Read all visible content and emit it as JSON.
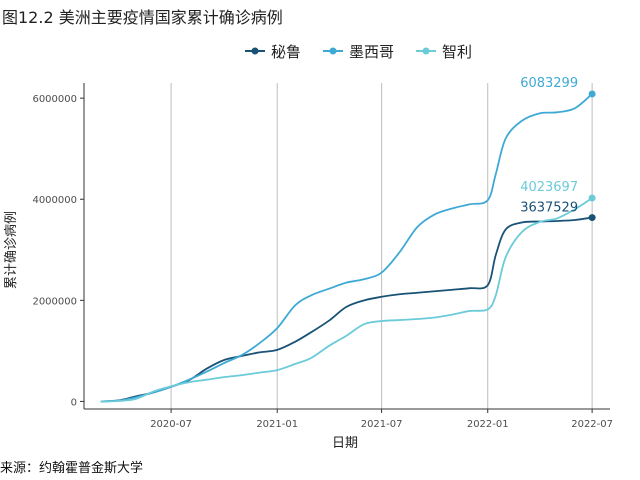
{
  "figure_title": "图12.2 美洲主要疫情国家累计确诊病例",
  "source_note": "来源：约翰霍普金斯大学",
  "chart_data": {
    "type": "line",
    "title": "",
    "xlabel": "日期",
    "ylabel": "累计确诊病例",
    "x_ticks": [
      "2020-07",
      "2021-01",
      "2021-07",
      "2022-01",
      "2022-07"
    ],
    "x_range": [
      "2020-02",
      "2022-08"
    ],
    "y_ticks": [
      0,
      2000000,
      4000000,
      6000000
    ],
    "ylim": [
      -150000,
      6300000
    ],
    "grid": "vertical major",
    "legend_position": "top",
    "series": [
      {
        "name": "秘鲁",
        "color": "#1a5276",
        "end_label": "3637529",
        "points": [
          [
            "2020-03-01",
            0
          ],
          [
            "2020-04-01",
            20000
          ],
          [
            "2020-05-01",
            100000
          ],
          [
            "2020-06-01",
            180000
          ],
          [
            "2020-07-01",
            290000
          ],
          [
            "2020-08-01",
            420000
          ],
          [
            "2020-09-01",
            650000
          ],
          [
            "2020-10-01",
            820000
          ],
          [
            "2020-11-01",
            900000
          ],
          [
            "2020-12-01",
            970000
          ],
          [
            "2021-01-01",
            1020000
          ],
          [
            "2021-02-01",
            1180000
          ],
          [
            "2021-03-01",
            1370000
          ],
          [
            "2021-04-01",
            1600000
          ],
          [
            "2021-05-01",
            1870000
          ],
          [
            "2021-06-01",
            2000000
          ],
          [
            "2021-07-01",
            2070000
          ],
          [
            "2021-08-01",
            2120000
          ],
          [
            "2021-09-01",
            2150000
          ],
          [
            "2021-10-01",
            2180000
          ],
          [
            "2021-11-01",
            2210000
          ],
          [
            "2021-12-01",
            2240000
          ],
          [
            "2022-01-01",
            2300000
          ],
          [
            "2022-01-15",
            2900000
          ],
          [
            "2022-02-01",
            3400000
          ],
          [
            "2022-03-01",
            3540000
          ],
          [
            "2022-04-01",
            3560000
          ],
          [
            "2022-05-01",
            3570000
          ],
          [
            "2022-06-01",
            3590000
          ],
          [
            "2022-07-01",
            3637529
          ]
        ]
      },
      {
        "name": "墨西哥",
        "color": "#3fa9d5",
        "end_label": "6083299",
        "points": [
          [
            "2020-03-01",
            0
          ],
          [
            "2020-04-01",
            15000
          ],
          [
            "2020-05-01",
            80000
          ],
          [
            "2020-06-01",
            180000
          ],
          [
            "2020-07-01",
            290000
          ],
          [
            "2020-08-01",
            430000
          ],
          [
            "2020-09-01",
            590000
          ],
          [
            "2020-10-01",
            760000
          ],
          [
            "2020-11-01",
            920000
          ],
          [
            "2020-12-01",
            1150000
          ],
          [
            "2021-01-01",
            1450000
          ],
          [
            "2021-02-01",
            1900000
          ],
          [
            "2021-03-01",
            2100000
          ],
          [
            "2021-04-01",
            2230000
          ],
          [
            "2021-05-01",
            2350000
          ],
          [
            "2021-06-01",
            2420000
          ],
          [
            "2021-07-01",
            2550000
          ],
          [
            "2021-08-01",
            2950000
          ],
          [
            "2021-09-01",
            3450000
          ],
          [
            "2021-10-01",
            3700000
          ],
          [
            "2021-11-01",
            3820000
          ],
          [
            "2021-12-01",
            3900000
          ],
          [
            "2022-01-01",
            3980000
          ],
          [
            "2022-01-15",
            4500000
          ],
          [
            "2022-02-01",
            5200000
          ],
          [
            "2022-03-01",
            5550000
          ],
          [
            "2022-04-01",
            5700000
          ],
          [
            "2022-05-01",
            5720000
          ],
          [
            "2022-06-01",
            5800000
          ],
          [
            "2022-07-01",
            6083299
          ]
        ]
      },
      {
        "name": "智利",
        "color": "#6bcbd9",
        "end_label": "4023697",
        "points": [
          [
            "2020-03-01",
            0
          ],
          [
            "2020-04-01",
            8000
          ],
          [
            "2020-05-01",
            50000
          ],
          [
            "2020-06-01",
            200000
          ],
          [
            "2020-07-01",
            300000
          ],
          [
            "2020-08-01",
            380000
          ],
          [
            "2020-09-01",
            430000
          ],
          [
            "2020-10-01",
            480000
          ],
          [
            "2020-11-01",
            520000
          ],
          [
            "2020-12-01",
            570000
          ],
          [
            "2021-01-01",
            620000
          ],
          [
            "2021-02-01",
            740000
          ],
          [
            "2021-03-01",
            860000
          ],
          [
            "2021-04-01",
            1100000
          ],
          [
            "2021-05-01",
            1300000
          ],
          [
            "2021-06-01",
            1530000
          ],
          [
            "2021-07-01",
            1590000
          ],
          [
            "2021-08-01",
            1610000
          ],
          [
            "2021-09-01",
            1630000
          ],
          [
            "2021-10-01",
            1660000
          ],
          [
            "2021-11-01",
            1720000
          ],
          [
            "2021-12-01",
            1790000
          ],
          [
            "2022-01-01",
            1820000
          ],
          [
            "2022-01-15",
            2100000
          ],
          [
            "2022-02-01",
            2850000
          ],
          [
            "2022-03-01",
            3350000
          ],
          [
            "2022-04-01",
            3550000
          ],
          [
            "2022-05-01",
            3620000
          ],
          [
            "2022-06-01",
            3800000
          ],
          [
            "2022-07-01",
            4023697
          ]
        ]
      }
    ]
  }
}
